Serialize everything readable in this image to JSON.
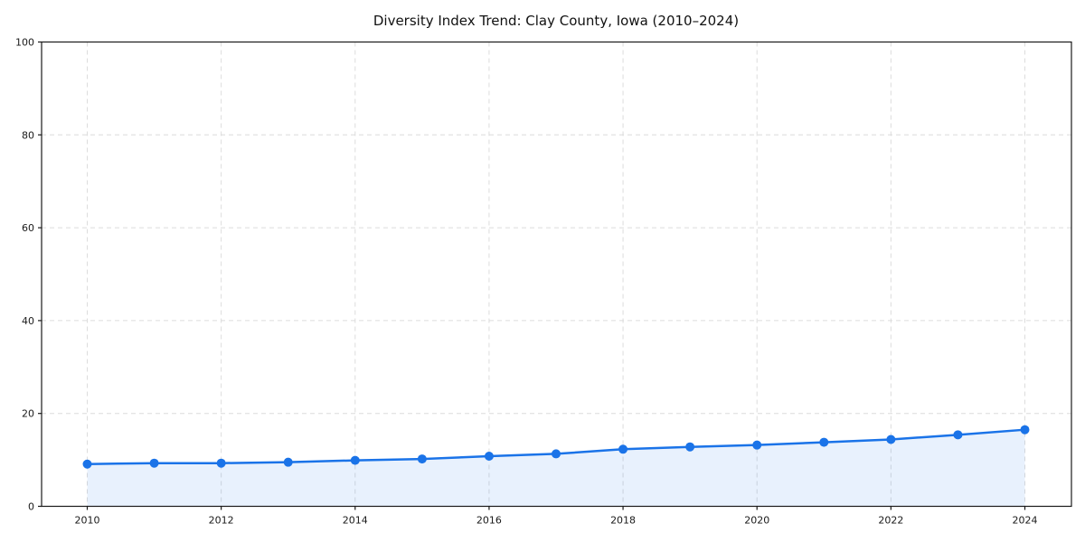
{
  "chart": {
    "title": "Diversity Index Trend: Clay County, Iowa (2010–2024)"
  },
  "chart_data": {
    "type": "line",
    "title": "Diversity Index Trend: Clay County, Iowa (2010–2024)",
    "x": [
      2010,
      2011,
      2012,
      2013,
      2014,
      2015,
      2016,
      2017,
      2018,
      2019,
      2020,
      2021,
      2022,
      2023,
      2024
    ],
    "series": [
      {
        "name": "Diversity Index",
        "values": [
          9.1,
          9.3,
          9.3,
          9.5,
          9.9,
          10.2,
          10.8,
          11.3,
          12.3,
          12.8,
          13.2,
          13.8,
          14.4,
          15.4,
          16.5
        ]
      }
    ],
    "xlabel": "",
    "ylabel": "",
    "ylim": [
      0,
      100
    ],
    "y_ticks": [
      0,
      20,
      40,
      60,
      80,
      100
    ],
    "x_tick_years": [
      2010,
      2012,
      2014,
      2016,
      2018,
      2020,
      2022,
      2024
    ],
    "x_tick_labels": [
      "2010",
      "2012",
      "2014",
      "2016",
      "2018",
      "2020",
      "2022",
      "2024"
    ],
    "grid": true,
    "grid_style": "dashed",
    "legend_position": "none",
    "line_color": "#1a73e8",
    "fill_color": "rgba(26,115,232,0.10)",
    "marker": "circle",
    "grid_color": "#dcdcdc",
    "spine_color": "#1a1a1a"
  }
}
